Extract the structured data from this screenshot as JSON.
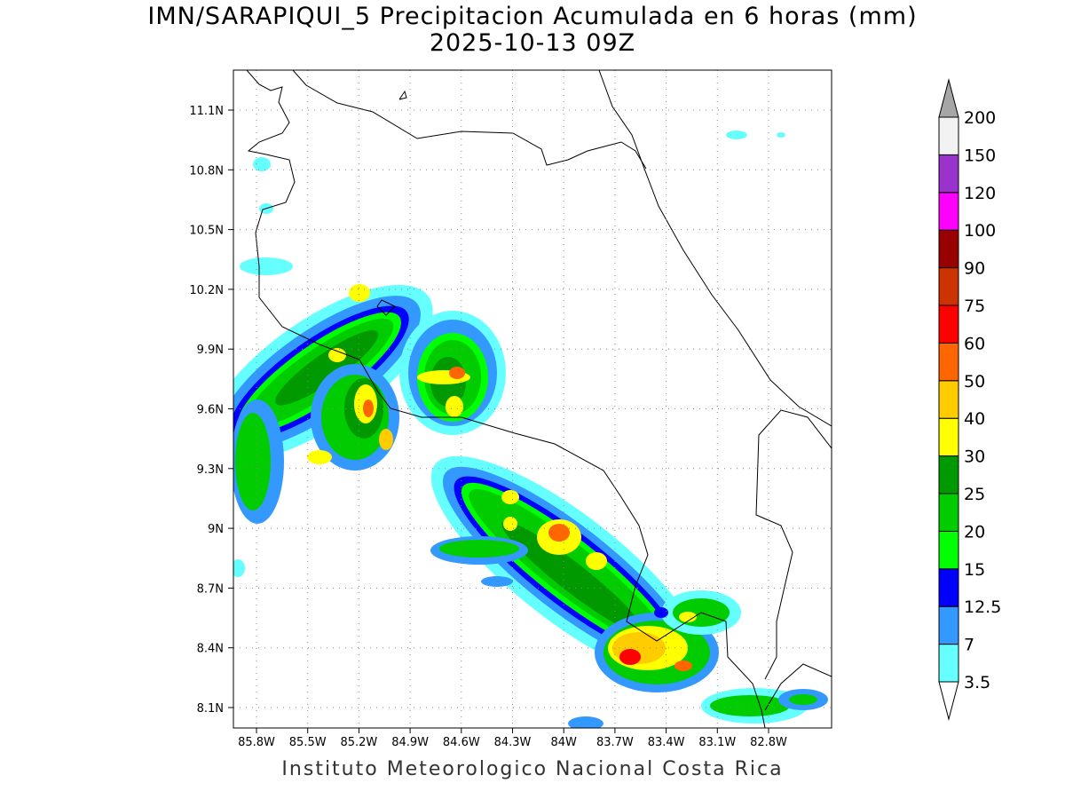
{
  "title": "IMN/SARAPIQUI_5 Precipitacion Acumulada en 6 horas (mm)",
  "subtitle": "2025-10-13 09Z",
  "footer": "Instituto Meteorologico Nacional Costa Rica",
  "map": {
    "lon_range": [
      -85.94,
      -82.43
    ],
    "lat_range": [
      8.0,
      11.3
    ],
    "lon_ticks": [
      "85.8W",
      "85.5W",
      "85.2W",
      "84.9W",
      "84.6W",
      "84.3W",
      "84W",
      "83.7W",
      "83.4W",
      "83.1W",
      "82.8W"
    ],
    "lat_ticks": [
      "11.1N",
      "10.8N",
      "10.5N",
      "10.2N",
      "9.9N",
      "9.6N",
      "9.3N",
      "9N",
      "8.7N",
      "8.4N",
      "8.1N"
    ]
  },
  "colorbar": {
    "labels": [
      "3.5",
      "7",
      "12.5",
      "15",
      "20",
      "25",
      "30",
      "40",
      "50",
      "60",
      "75",
      "90",
      "100",
      "120",
      "150",
      "200"
    ],
    "colors": [
      "#66ffff",
      "#3399ff",
      "#0000ff",
      "#00ff00",
      "#00cc00",
      "#009900",
      "#ffff00",
      "#ffcc00",
      "#ff6600",
      "#ff0000",
      "#cc3300",
      "#990000",
      "#ff00ff",
      "#9933cc",
      "#f2f2f2"
    ],
    "over_color": "#a6a6a6",
    "under_color": "#ffffff"
  }
}
